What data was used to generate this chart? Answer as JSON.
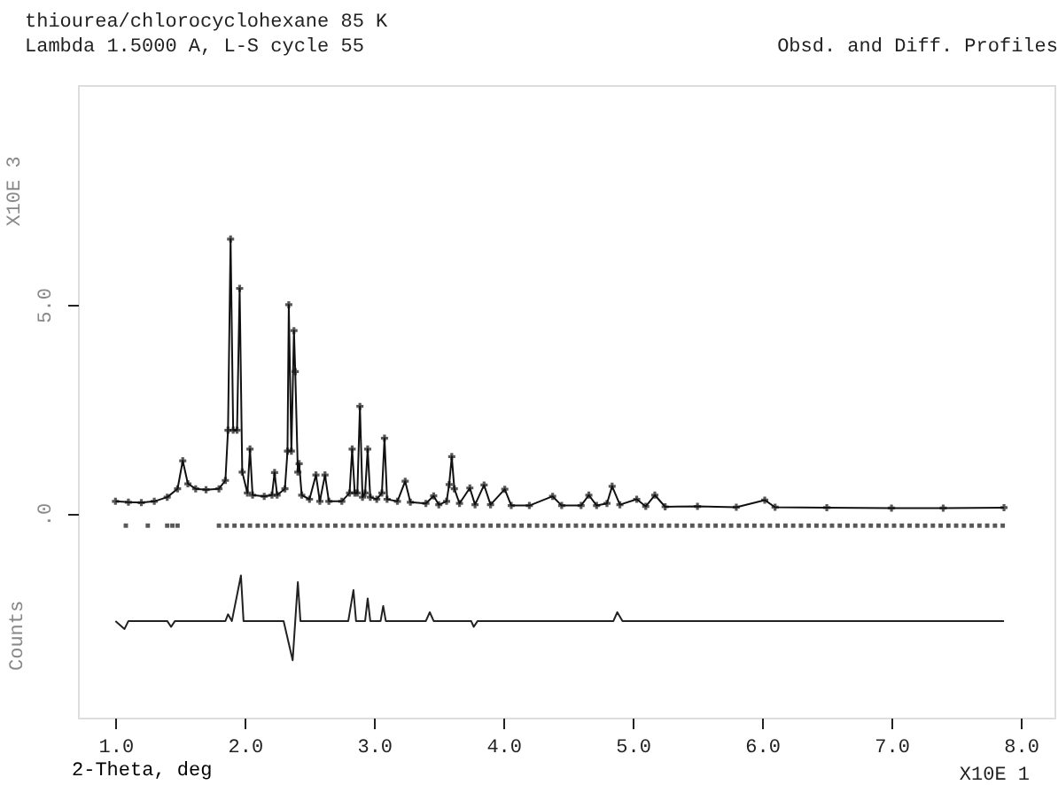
{
  "chart_data": {
    "type": "line",
    "title": "thiourea/chlorocyclohexane 85 K",
    "subtitle": "Lambda 1.5000 A, L-S cycle   55",
    "xlabel": "2-Theta, deg",
    "ylabel": "Counts",
    "annotations": [
      "Obsd. and Diff. Profiles",
      "X10E 1",
      "X10E 3"
    ],
    "xlim": [
      0.71,
      8.26
    ],
    "ylim": [
      -4.87,
      10.25
    ],
    "xticks": [
      {
        "value": 1,
        "label": "1.0"
      },
      {
        "value": 2,
        "label": "2.0"
      },
      {
        "value": 3,
        "label": "3.0"
      },
      {
        "value": 4,
        "label": "4.0"
      },
      {
        "value": 5,
        "label": "5.0"
      },
      {
        "value": 6,
        "label": "6.0"
      },
      {
        "value": 7,
        "label": "7.0"
      },
      {
        "value": 8,
        "label": "8.0"
      }
    ],
    "yticks": [
      {
        "value": 0,
        "label": ".0"
      },
      {
        "value": 5,
        "label": "5.0"
      }
    ],
    "series": [
      {
        "marker": "cross",
        "color": "#111111",
        "x": [
          1.0,
          1.1,
          1.2,
          1.3,
          1.4,
          1.48,
          1.52,
          1.56,
          1.62,
          1.7,
          1.8,
          1.85,
          1.87,
          1.89,
          1.91,
          1.94,
          1.96,
          1.98,
          2.02,
          2.04,
          2.06,
          2.15,
          2.21,
          2.23,
          2.25,
          2.31,
          2.33,
          2.34,
          2.36,
          2.38,
          2.39,
          2.41,
          2.42,
          2.44,
          2.5,
          2.55,
          2.58,
          2.62,
          2.65,
          2.75,
          2.81,
          2.83,
          2.85,
          2.87,
          2.89,
          2.91,
          2.93,
          2.95,
          2.97,
          3.02,
          3.06,
          3.08,
          3.1,
          3.18,
          3.24,
          3.28,
          3.4,
          3.46,
          3.5,
          3.56,
          3.58,
          3.6,
          3.62,
          3.66,
          3.74,
          3.78,
          3.85,
          3.9,
          4.01,
          4.06,
          4.2,
          4.38,
          4.45,
          4.6,
          4.66,
          4.72,
          4.8,
          4.84,
          4.9,
          5.03,
          5.1,
          5.17,
          5.25,
          5.5,
          5.8,
          6.02,
          6.1,
          6.5,
          7.0,
          7.4,
          7.87
        ],
        "values": [
          0.3,
          0.28,
          0.27,
          0.3,
          0.4,
          0.6,
          1.27,
          0.72,
          0.6,
          0.58,
          0.6,
          0.8,
          2.0,
          6.57,
          2.0,
          2.0,
          5.39,
          1.0,
          0.5,
          1.55,
          0.45,
          0.42,
          0.45,
          0.99,
          0.45,
          0.6,
          1.5,
          5.0,
          1.5,
          4.38,
          3.4,
          1.0,
          1.2,
          0.45,
          0.35,
          0.93,
          0.3,
          0.93,
          0.3,
          0.3,
          0.5,
          1.55,
          0.5,
          0.5,
          2.57,
          0.4,
          0.5,
          1.55,
          0.4,
          0.35,
          0.5,
          1.81,
          0.35,
          0.3,
          0.78,
          0.28,
          0.25,
          0.43,
          0.22,
          0.3,
          0.7,
          1.37,
          0.6,
          0.25,
          0.62,
          0.22,
          0.69,
          0.22,
          0.59,
          0.2,
          0.2,
          0.42,
          0.2,
          0.2,
          0.45,
          0.2,
          0.25,
          0.66,
          0.22,
          0.35,
          0.18,
          0.45,
          0.17,
          0.18,
          0.16,
          0.33,
          0.16,
          0.15,
          0.14,
          0.14,
          0.15
        ]
      },
      {
        "type": "scatter",
        "marker": "square",
        "color": "#111111",
        "x": [
          1.08,
          1.25,
          1.4,
          1.44,
          1.48,
          1.8,
          1.86,
          1.92,
          1.98,
          2.04,
          2.1,
          2.16,
          2.22,
          2.28,
          2.34,
          2.4,
          2.46,
          2.52,
          2.58,
          2.64,
          2.7,
          2.76,
          2.82,
          2.88,
          2.94,
          3.0,
          3.06,
          3.12,
          3.18,
          3.24,
          3.3,
          3.36,
          3.42,
          3.48,
          3.54,
          3.6,
          3.66,
          3.72,
          3.78,
          3.84,
          3.9,
          3.96,
          4.02,
          4.08,
          4.14,
          4.2,
          4.26,
          4.32,
          4.38,
          4.44,
          4.5,
          4.56,
          4.62,
          4.68,
          4.74,
          4.8,
          4.86,
          4.92,
          4.98,
          5.04,
          5.1,
          5.16,
          5.22,
          5.28,
          5.34,
          5.4,
          5.46,
          5.52,
          5.58,
          5.64,
          5.7,
          5.76,
          5.82,
          5.88,
          5.94,
          6.0,
          6.06,
          6.12,
          6.18,
          6.24,
          6.3,
          6.36,
          6.42,
          6.48,
          6.54,
          6.6,
          6.66,
          6.72,
          6.78,
          6.84,
          6.9,
          6.96,
          7.02,
          7.08,
          7.14,
          7.2,
          7.26,
          7.32,
          7.38,
          7.44,
          7.5,
          7.56,
          7.62,
          7.68,
          7.74,
          7.8,
          7.86
        ],
        "values": [
          -0.28,
          -0.28,
          -0.28,
          -0.28,
          -0.28,
          -0.28,
          -0.28,
          -0.28,
          -0.28,
          -0.28,
          -0.28,
          -0.28,
          -0.28,
          -0.28,
          -0.28,
          -0.28,
          -0.28,
          -0.28,
          -0.28,
          -0.28,
          -0.28,
          -0.28,
          -0.28,
          -0.28,
          -0.28,
          -0.28,
          -0.28,
          -0.28,
          -0.28,
          -0.28,
          -0.28,
          -0.28,
          -0.28,
          -0.28,
          -0.28,
          -0.28,
          -0.28,
          -0.28,
          -0.28,
          -0.28,
          -0.28,
          -0.28,
          -0.28,
          -0.28,
          -0.28,
          -0.28,
          -0.28,
          -0.28,
          -0.28,
          -0.28,
          -0.28,
          -0.28,
          -0.28,
          -0.28,
          -0.28,
          -0.28,
          -0.28,
          -0.28,
          -0.28,
          -0.28,
          -0.28,
          -0.28,
          -0.28,
          -0.28,
          -0.28,
          -0.28,
          -0.28,
          -0.28,
          -0.28,
          -0.28,
          -0.28,
          -0.28,
          -0.28,
          -0.28,
          -0.28,
          -0.28,
          -0.28,
          -0.28,
          -0.28,
          -0.28,
          -0.28,
          -0.28,
          -0.28,
          -0.28,
          -0.28,
          -0.28,
          -0.28,
          -0.28,
          -0.28,
          -0.28,
          -0.28,
          -0.28,
          -0.28,
          -0.28,
          -0.28,
          -0.28,
          -0.28,
          -0.28,
          -0.28,
          -0.28,
          -0.28,
          -0.28,
          -0.28,
          -0.28,
          -0.28,
          -0.28,
          -0.28
        ]
      },
      {
        "type": "line",
        "marker": "none",
        "color": "#222222",
        "x": [
          1.0,
          1.07,
          1.1,
          1.4,
          1.43,
          1.46,
          1.85,
          1.87,
          1.9,
          1.97,
          1.99,
          2.3,
          2.37,
          2.39,
          2.41,
          2.43,
          2.8,
          2.84,
          2.86,
          2.93,
          2.95,
          2.97,
          3.05,
          3.07,
          3.09,
          3.4,
          3.43,
          3.46,
          3.75,
          3.77,
          3.8,
          4.85,
          4.88,
          4.92,
          7.87
        ],
        "values": [
          -2.56,
          -2.75,
          -2.56,
          -2.56,
          -2.7,
          -2.56,
          -2.56,
          -2.4,
          -2.56,
          -1.47,
          -2.56,
          -2.56,
          -3.5,
          -2.56,
          -1.63,
          -2.56,
          -2.56,
          -1.82,
          -2.56,
          -2.56,
          -2.02,
          -2.56,
          -2.56,
          -2.2,
          -2.56,
          -2.56,
          -2.35,
          -2.56,
          -2.56,
          -2.7,
          -2.56,
          -2.56,
          -2.35,
          -2.56,
          -2.56
        ]
      }
    ]
  }
}
